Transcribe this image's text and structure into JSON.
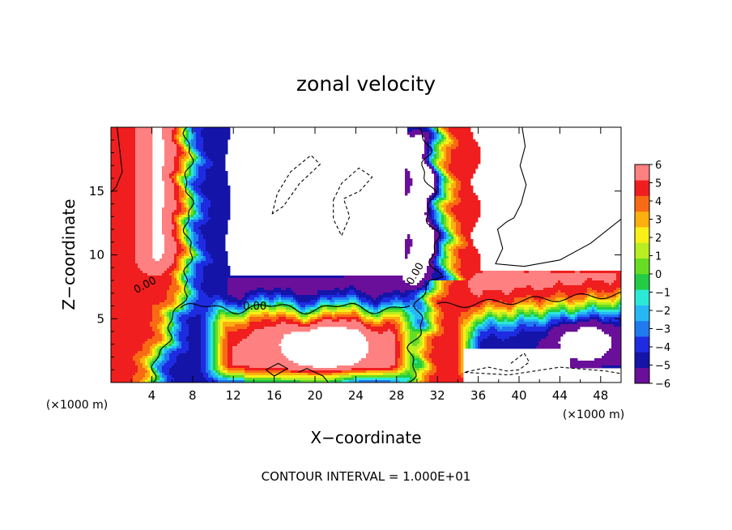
{
  "chart_data": {
    "type": "heatmap",
    "title": "zonal velocity",
    "xlabel": "X−coordinate",
    "ylabel": "Z−coordinate",
    "x_unit_label": "(×1000 m)",
    "y_unit_label": "(×1000 m)",
    "footer": "CONTOUR INTERVAL = 1.000E+01",
    "xlim": [
      0,
      50
    ],
    "ylim": [
      0,
      20
    ],
    "x_ticks": [
      4,
      8,
      12,
      16,
      20,
      24,
      28,
      32,
      36,
      40,
      44,
      48
    ],
    "y_ticks": [
      5,
      10,
      15
    ],
    "colorbar": {
      "ticks": [
        "6",
        "5",
        "4",
        "3",
        "2",
        "1",
        "0",
        "−1",
        "−2",
        "−3",
        "−4",
        "−5",
        "−6"
      ],
      "range": [
        -6,
        6
      ],
      "colors": [
        "#6a0f9a",
        "#1414a8",
        "#1e2be0",
        "#1f7af0",
        "#26b8f5",
        "#2ce8d8",
        "#22cc44",
        "#66dd22",
        "#b8ee22",
        "#f8f018",
        "#fbb010",
        "#f86a14",
        "#f01e1e",
        "#ff8080"
      ]
    },
    "contour_labels": [
      {
        "text": "0.00",
        "x": 3.5,
        "z": 7.4
      },
      {
        "text": "0.00",
        "x": 14.1,
        "z": 5.7
      },
      {
        "text": "0.00",
        "x": 30.1,
        "z": 8.4
      }
    ]
  }
}
